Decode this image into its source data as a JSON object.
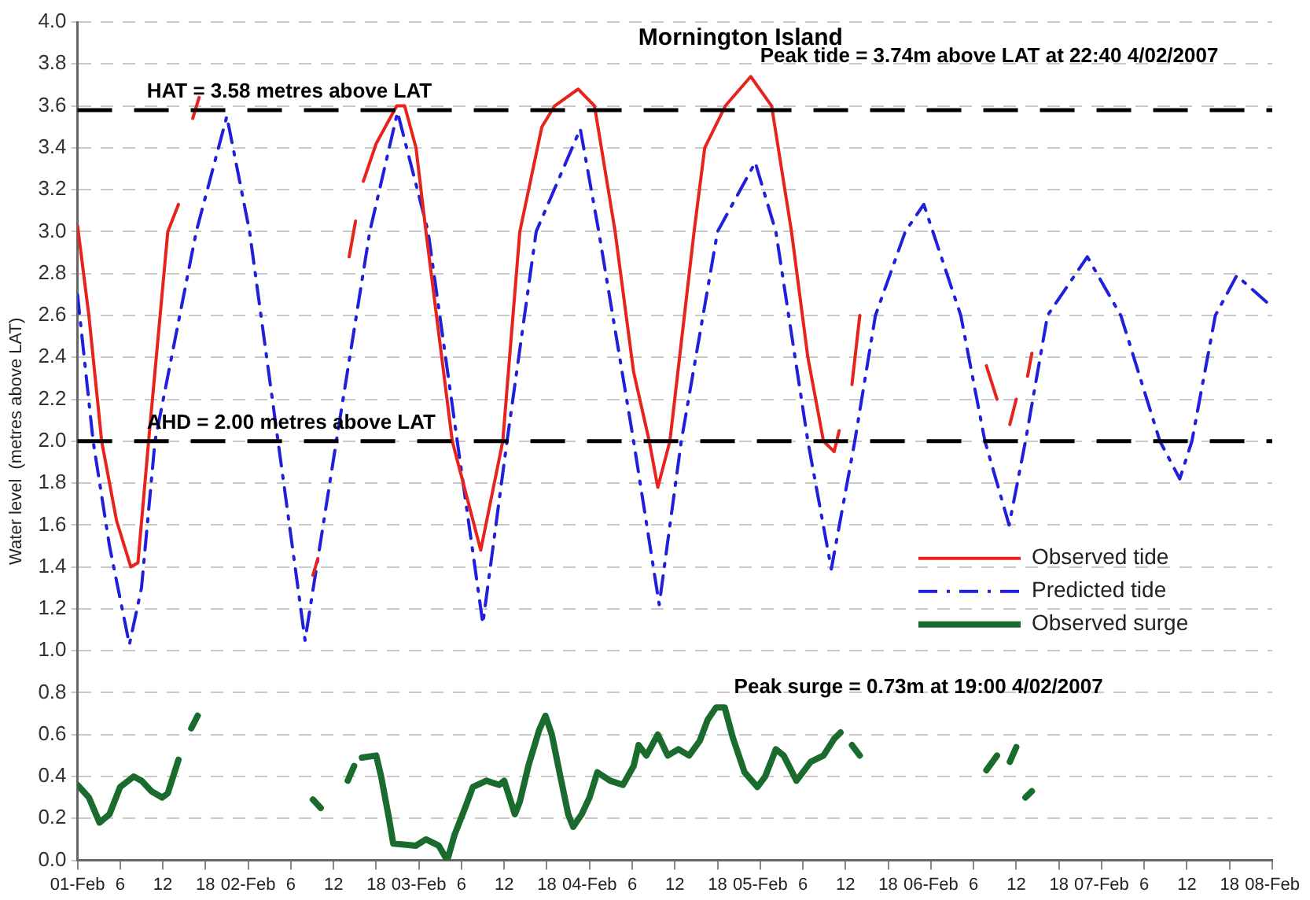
{
  "chart_data": {
    "type": "line",
    "title": "Mornington Island",
    "ylabel": "Water level  (metres above LAT)",
    "xlim": [
      "2007-02-01T00:00",
      "2007-02-08T00:00"
    ],
    "ylim": [
      0,
      4
    ],
    "xticks": [
      {
        "value": "2007-02-01T00:00",
        "label": "01-Feb"
      },
      {
        "value": "2007-02-01T06:00",
        "label": "6"
      },
      {
        "value": "2007-02-01T12:00",
        "label": "12"
      },
      {
        "value": "2007-02-01T18:00",
        "label": "18"
      },
      {
        "value": "2007-02-02T00:00",
        "label": "02-Feb"
      },
      {
        "value": "2007-02-02T06:00",
        "label": "6"
      },
      {
        "value": "2007-02-02T12:00",
        "label": "12"
      },
      {
        "value": "2007-02-02T18:00",
        "label": "18"
      },
      {
        "value": "2007-02-03T00:00",
        "label": "03-Feb"
      },
      {
        "value": "2007-02-03T06:00",
        "label": "6"
      },
      {
        "value": "2007-02-03T12:00",
        "label": "12"
      },
      {
        "value": "2007-02-03T18:00",
        "label": "18"
      },
      {
        "value": "2007-02-04T00:00",
        "label": "04-Feb"
      },
      {
        "value": "2007-02-04T06:00",
        "label": "6"
      },
      {
        "value": "2007-02-04T12:00",
        "label": "12"
      },
      {
        "value": "2007-02-04T18:00",
        "label": "18"
      },
      {
        "value": "2007-02-05T00:00",
        "label": "05-Feb"
      },
      {
        "value": "2007-02-05T06:00",
        "label": "6"
      },
      {
        "value": "2007-02-05T12:00",
        "label": "12"
      },
      {
        "value": "2007-02-05T18:00",
        "label": "18"
      },
      {
        "value": "2007-02-06T00:00",
        "label": "06-Feb"
      },
      {
        "value": "2007-02-06T06:00",
        "label": "6"
      },
      {
        "value": "2007-02-06T12:00",
        "label": "12"
      },
      {
        "value": "2007-02-06T18:00",
        "label": "18"
      },
      {
        "value": "2007-02-07T00:00",
        "label": "07-Feb"
      },
      {
        "value": "2007-02-07T06:00",
        "label": "6"
      },
      {
        "value": "2007-02-07T12:00",
        "label": "12"
      },
      {
        "value": "2007-02-07T18:00",
        "label": "18"
      },
      {
        "value": "2007-02-08T00:00",
        "label": "08-Feb"
      }
    ],
    "yticks": [
      {
        "value": 0,
        "label": "0.0"
      },
      0.2,
      0.4,
      0.6,
      0.8,
      {
        "value": 1,
        "label": "1.0"
      },
      1.2,
      1.4,
      1.6,
      1.8,
      {
        "value": 2,
        "label": "2.0"
      },
      2.2,
      2.4,
      2.6,
      2.8,
      {
        "value": 3,
        "label": "3.0"
      },
      3.2,
      3.4,
      3.6,
      3.8,
      {
        "value": 4,
        "label": "4.0"
      }
    ],
    "grid": "y",
    "legend": "right",
    "marker": "none",
    "ref_lines": [
      {
        "axis": "y",
        "value": 3.58,
        "label": "HAT = 3.58 metres above LAT",
        "color": "#000000",
        "line_style": "dashed"
      },
      {
        "axis": "y",
        "value": 2.0,
        "label": "AHD = 2.00 metres above LAT",
        "color": "#000000",
        "line_style": "dashed"
      }
    ],
    "annotations": [
      {
        "text": "Peak tide = 3.74m above LAT at 22:40 4/02/2007",
        "x": "2007-02-04T22:40",
        "y": 3.74
      },
      {
        "text": "Peak surge = 0.73m at 19:00 4/02/2007",
        "x": "2007-02-04T19:00",
        "y": 0.73
      }
    ],
    "series": [
      {
        "name": "Observed tide",
        "color": "#e8231e",
        "line_style": "solid",
        "x": [
          "2007-02-01T00:00",
          "2007-02-01T01:36",
          "2007-02-01T03:24",
          "2007-02-01T05:30",
          "2007-02-01T07:30",
          "2007-02-01T08:30",
          "2007-02-01T10:00",
          "2007-02-01T12:42",
          "2007-02-01T14:12",
          "2007-02-01T15:00",
          "2007-02-01T16:12",
          "2007-02-01T17:06",
          "2007-02-02T01:00",
          "2007-02-02T09:06",
          "2007-02-02T09:48",
          "2007-02-02T12:00",
          "2007-02-02T14:12",
          "2007-02-02T15:06",
          "2007-02-02T15:36",
          "2007-02-02T16:12",
          "2007-02-02T18:00",
          "2007-02-02T20:54",
          "2007-02-02T22:00",
          "2007-02-02T23:36",
          "2007-02-03T01:00",
          "2007-02-03T04:42",
          "2007-02-03T08:42",
          "2007-02-03T11:48",
          "2007-02-03T14:12",
          "2007-02-03T17:18",
          "2007-02-03T19:06",
          "2007-02-03T22:24",
          "2007-02-04T00:42",
          "2007-02-04T03:36",
          "2007-02-04T06:12",
          "2007-02-04T08:24",
          "2007-02-04T09:36",
          "2007-02-04T11:18",
          "2007-02-04T14:42",
          "2007-02-04T16:12",
          "2007-02-04T19:06",
          "2007-02-04T22:40",
          "2007-02-05T01:36",
          "2007-02-05T04:24",
          "2007-02-05T06:42",
          "2007-02-05T08:54",
          "2007-02-05T10:24",
          "2007-02-05T11:06",
          "2007-02-05T12:00",
          "2007-02-05T12:54",
          "2007-02-05T14:00",
          "2007-02-05T23:00",
          "2007-02-06T07:48",
          "2007-02-06T09:18",
          "2007-02-06T10:12",
          "2007-02-06T11:06",
          "2007-02-06T12:00",
          "2007-02-06T12:48",
          "2007-02-06T13:36",
          "2007-02-06T14:12"
        ],
        "values": [
          3.03,
          2.6,
          2.0,
          1.62,
          1.4,
          1.42,
          2.0,
          3.0,
          3.13,
          null,
          3.54,
          3.64,
          null,
          1.36,
          1.44,
          null,
          2.88,
          3.05,
          null,
          3.24,
          3.42,
          3.6,
          3.6,
          3.4,
          3.0,
          2.0,
          1.48,
          2.0,
          3.0,
          3.5,
          3.6,
          3.68,
          3.6,
          3.0,
          2.33,
          2.0,
          1.78,
          2.0,
          3.0,
          3.4,
          3.6,
          3.74,
          3.6,
          3.0,
          2.4,
          2.0,
          1.95,
          2.05,
          null,
          2.27,
          2.6,
          null,
          2.36,
          2.2,
          null,
          2.08,
          2.2,
          null,
          2.31,
          2.42
        ]
      },
      {
        "name": "Predicted tide",
        "color": "#1f1fdc",
        "line_style": "dashed",
        "x": [
          "2007-02-01T00:00",
          "2007-02-01T02:12",
          "2007-02-01T04:30",
          "2007-02-01T07:18",
          "2007-02-01T09:00",
          "2007-02-01T10:54",
          "2007-02-01T16:42",
          "2007-02-01T21:00",
          "2007-02-02T00:12",
          "2007-02-02T04:12",
          "2007-02-02T08:00",
          "2007-02-02T12:24",
          "2007-02-02T17:06",
          "2007-02-02T21:00",
          "2007-02-03T01:18",
          "2007-02-03T05:24",
          "2007-02-03T09:00",
          "2007-02-03T12:24",
          "2007-02-03T16:30",
          "2007-02-03T22:42",
          "2007-02-04T01:18",
          "2007-02-04T06:12",
          "2007-02-04T09:48",
          "2007-02-04T12:54",
          "2007-02-04T18:00",
          "2007-02-04T23:18",
          "2007-02-05T02:12",
          "2007-02-05T06:42",
          "2007-02-05T10:00",
          "2007-02-05T13:18",
          "2007-02-05T16:12",
          "2007-02-05T20:24",
          "2007-02-05T23:00",
          "2007-02-06T04:12",
          "2007-02-06T07:36",
          "2007-02-06T11:00",
          "2007-02-06T13:18",
          "2007-02-06T16:24",
          "2007-02-06T22:00",
          "2007-02-07T02:42",
          "2007-02-07T08:12",
          "2007-02-07T11:00",
          "2007-02-07T12:42",
          "2007-02-07T16:00",
          "2007-02-07T19:00",
          "2007-02-08T00:00"
        ],
        "values": [
          2.7,
          2.0,
          1.5,
          1.03,
          1.3,
          2.0,
          3.0,
          3.55,
          3.0,
          2.0,
          1.05,
          2.0,
          3.0,
          3.57,
          3.0,
          2.0,
          1.13,
          2.0,
          3.0,
          3.49,
          3.0,
          2.0,
          1.22,
          2.0,
          3.0,
          3.33,
          3.0,
          2.0,
          1.39,
          2.0,
          2.6,
          3.0,
          3.13,
          2.6,
          2.0,
          1.6,
          2.0,
          2.6,
          2.88,
          2.6,
          2.0,
          1.82,
          2.0,
          2.6,
          2.79,
          2.64
        ]
      },
      {
        "name": "Observed surge",
        "color": "#1a6b2e",
        "line_style": "solid",
        "x": [
          "2007-02-01T00:00",
          "2007-02-01T01:36",
          "2007-02-01T03:06",
          "2007-02-01T04:30",
          "2007-02-01T06:00",
          "2007-02-01T07:54",
          "2007-02-01T09:00",
          "2007-02-01T10:24",
          "2007-02-01T11:54",
          "2007-02-01T12:42",
          "2007-02-01T14:12",
          "2007-02-01T15:00",
          "2007-02-01T16:00",
          "2007-02-01T16:54",
          "2007-02-02T01:00",
          "2007-02-02T09:06",
          "2007-02-02T10:12",
          "2007-02-02T12:00",
          "2007-02-02T14:00",
          "2007-02-02T14:54",
          "2007-02-02T15:30",
          "2007-02-02T16:00",
          "2007-02-02T18:00",
          "2007-02-02T18:42",
          "2007-02-02T19:48",
          "2007-02-02T20:24",
          "2007-02-02T23:36",
          "2007-02-03T01:00",
          "2007-02-03T02:48",
          "2007-02-03T04:00",
          "2007-02-03T05:00",
          "2007-02-03T06:30",
          "2007-02-03T07:36",
          "2007-02-03T09:30",
          "2007-02-03T11:18",
          "2007-02-03T12:00",
          "2007-02-03T13:30",
          "2007-02-03T14:12",
          "2007-02-03T15:24",
          "2007-02-03T16:54",
          "2007-02-03T17:48",
          "2007-02-03T18:42",
          "2007-02-03T19:54",
          "2007-02-03T21:00",
          "2007-02-03T21:42",
          "2007-02-03T22:54",
          "2007-02-04T00:00",
          "2007-02-04T01:06",
          "2007-02-04T02:54",
          "2007-02-04T04:42",
          "2007-02-04T06:12",
          "2007-02-04T06:54",
          "2007-02-04T08:00",
          "2007-02-04T09:36",
          "2007-02-04T11:00",
          "2007-02-04T12:30",
          "2007-02-04T14:00",
          "2007-02-04T15:30",
          "2007-02-04T16:36",
          "2007-02-04T17:48",
          "2007-02-04T19:00",
          "2007-02-04T20:12",
          "2007-02-04T21:48",
          "2007-02-04T23:36",
          "2007-02-05T00:42",
          "2007-02-05T02:12",
          "2007-02-05T03:18",
          "2007-02-05T05:06",
          "2007-02-05T07:06",
          "2007-02-05T08:54",
          "2007-02-05T10:24",
          "2007-02-05T11:18",
          "2007-02-05T12:00",
          "2007-02-05T12:54",
          "2007-02-05T14:00",
          "2007-02-05T23:00",
          "2007-02-06T07:48",
          "2007-02-06T09:18",
          "2007-02-06T10:12",
          "2007-02-06T11:06",
          "2007-02-06T12:00",
          "2007-02-06T12:42",
          "2007-02-06T13:18",
          "2007-02-06T14:12"
        ],
        "values": [
          0.36,
          0.3,
          0.18,
          0.22,
          0.35,
          0.4,
          0.38,
          0.33,
          0.3,
          0.32,
          0.48,
          null,
          0.63,
          0.69,
          null,
          0.29,
          0.25,
          null,
          0.38,
          0.45,
          null,
          0.49,
          0.5,
          0.4,
          0.2,
          0.08,
          0.07,
          0.1,
          0.07,
          0.0,
          0.12,
          0.25,
          0.35,
          0.38,
          0.36,
          0.38,
          0.22,
          0.28,
          0.45,
          0.62,
          0.69,
          0.6,
          0.4,
          0.22,
          0.16,
          0.22,
          0.3,
          0.42,
          0.38,
          0.36,
          0.45,
          0.55,
          0.5,
          0.6,
          0.5,
          0.53,
          0.5,
          0.57,
          0.67,
          0.73,
          0.73,
          0.58,
          0.42,
          0.35,
          0.4,
          0.53,
          0.5,
          0.38,
          0.47,
          0.5,
          0.58,
          0.61,
          null,
          0.55,
          0.5,
          null,
          0.43,
          0.5,
          null,
          0.47,
          0.54,
          null,
          0.3,
          0.33
        ]
      }
    ]
  }
}
